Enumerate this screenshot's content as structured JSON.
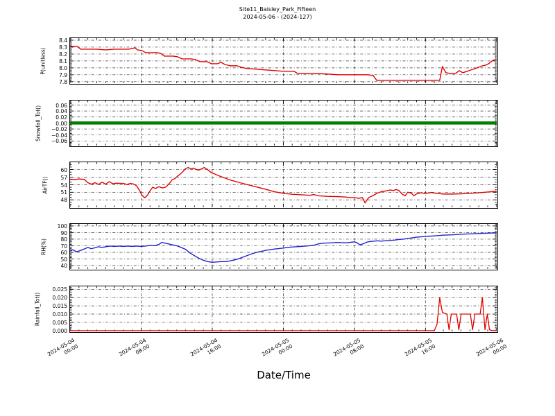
{
  "figure": {
    "title_line1": "Site11_Baisley_Park_Fifteen",
    "title_line2": "2024-05-06 - (2024-127)",
    "background": "#ffffff"
  },
  "xaxis": {
    "label": "Date/Time",
    "xlim_hours": [
      0,
      48
    ],
    "ticks": [
      {
        "h": 0,
        "label": "2024-05-04\n00:00"
      },
      {
        "h": 8,
        "label": "2024-05-04\n08:00"
      },
      {
        "h": 16,
        "label": "2024-05-04\n16:00"
      },
      {
        "h": 24,
        "label": "2024-05-05\n00:00"
      },
      {
        "h": 32,
        "label": "2024-05-05\n08:00"
      },
      {
        "h": 40,
        "label": "2024-05-05\n16:00"
      },
      {
        "h": 48,
        "label": "2024-05-06\n00:00"
      }
    ]
  },
  "chart_data": [
    {
      "id": "p-unitless",
      "type": "line",
      "ylabel": "P(unitless)",
      "color": "#e00000",
      "line_width": 1.4,
      "ylim": [
        7.78,
        8.43
      ],
      "ytick_values": [
        8.4,
        8.3,
        8.2,
        8.1,
        8.0,
        7.9,
        7.8
      ],
      "ytick_labels": [
        "8.4",
        "8.3",
        "8.2",
        "8.1",
        "8.0",
        "7.9",
        "7.8"
      ],
      "points": [
        [
          0,
          8.31
        ],
        [
          0.8,
          8.31
        ],
        [
          1.2,
          8.27
        ],
        [
          3,
          8.27
        ],
        [
          4,
          8.26
        ],
        [
          5,
          8.27
        ],
        [
          6.6,
          8.27
        ],
        [
          7,
          8.28
        ],
        [
          7.3,
          8.29
        ],
        [
          7.6,
          8.26
        ],
        [
          8.1,
          8.25
        ],
        [
          8.5,
          8.22
        ],
        [
          9.8,
          8.22
        ],
        [
          10.2,
          8.21
        ],
        [
          10.6,
          8.17
        ],
        [
          11.6,
          8.17
        ],
        [
          12.1,
          8.16
        ],
        [
          12.6,
          8.13
        ],
        [
          13.6,
          8.13
        ],
        [
          14.1,
          8.12
        ],
        [
          14.6,
          8.09
        ],
        [
          15.4,
          8.09
        ],
        [
          15.9,
          8.06
        ],
        [
          16.6,
          8.06
        ],
        [
          17,
          8.08
        ],
        [
          17.4,
          8.05
        ],
        [
          18,
          8.03
        ],
        [
          18.8,
          8.03
        ],
        [
          19.2,
          8.01
        ],
        [
          19.9,
          7.99
        ],
        [
          21,
          7.98
        ],
        [
          22,
          7.97
        ],
        [
          23,
          7.96
        ],
        [
          24,
          7.95
        ],
        [
          25.2,
          7.95
        ],
        [
          25.6,
          7.92
        ],
        [
          27.5,
          7.92
        ],
        [
          29,
          7.91
        ],
        [
          30.2,
          7.9
        ],
        [
          33.5,
          7.9
        ],
        [
          34.1,
          7.89
        ],
        [
          34.5,
          7.82
        ],
        [
          41.6,
          7.82
        ],
        [
          41.9,
          8.02
        ],
        [
          42.3,
          7.93
        ],
        [
          42.7,
          7.92
        ],
        [
          43.4,
          7.92
        ],
        [
          43.8,
          7.96
        ],
        [
          44.2,
          7.93
        ],
        [
          44.7,
          7.95
        ],
        [
          45.1,
          7.97
        ],
        [
          45.6,
          7.99
        ],
        [
          46,
          8.01
        ],
        [
          46.4,
          8.03
        ],
        [
          46.8,
          8.04
        ],
        [
          47.1,
          8.06
        ],
        [
          47.4,
          8.09
        ],
        [
          47.6,
          8.11
        ],
        [
          47.9,
          8.12
        ],
        [
          48,
          8.12
        ]
      ]
    },
    {
      "id": "snowfall-tot",
      "type": "line",
      "ylabel": "Snowfall_Tot()",
      "color": "#007f00",
      "line_width": 4.5,
      "ylim": [
        -0.075,
        0.075
      ],
      "ytick_values": [
        0.06,
        0.04,
        0.02,
        0.0,
        -0.02,
        -0.04,
        -0.06
      ],
      "ytick_labels": [
        "0.06",
        "0.04",
        "0.02",
        "0.00",
        "−0.02",
        "−0.04",
        "−0.06"
      ],
      "points": [
        [
          0,
          0
        ],
        [
          48,
          0
        ]
      ]
    },
    {
      "id": "airtf",
      "type": "line",
      "ylabel": "AirTF()",
      "color": "#e00000",
      "line_width": 1.4,
      "ylim": [
        45.1,
        62.9
      ],
      "ytick_values": [
        60,
        57,
        54,
        51,
        48
      ],
      "ytick_labels": [
        "60",
        "57",
        "54",
        "51",
        "48"
      ],
      "points": [
        [
          0,
          56.2
        ],
        [
          0.5,
          56
        ],
        [
          1,
          56.3
        ],
        [
          1.6,
          56.1
        ],
        [
          2,
          54.8
        ],
        [
          2.4,
          54.2
        ],
        [
          2.8,
          54.8
        ],
        [
          3.2,
          54.1
        ],
        [
          3.6,
          55
        ],
        [
          4,
          54.2
        ],
        [
          4.4,
          55.2
        ],
        [
          4.8,
          54.4
        ],
        [
          5.2,
          54.6
        ],
        [
          6,
          54.5
        ],
        [
          6.4,
          54.1
        ],
        [
          6.8,
          54.5
        ],
        [
          7.2,
          54.2
        ],
        [
          7.5,
          53.5
        ],
        [
          7.8,
          51.8
        ],
        [
          8.1,
          49.8
        ],
        [
          8.4,
          48.8
        ],
        [
          8.7,
          49.8
        ],
        [
          9,
          51.6
        ],
        [
          9.3,
          53
        ],
        [
          9.6,
          52.5
        ],
        [
          10,
          53.2
        ],
        [
          10.4,
          52.7
        ],
        [
          10.8,
          53.1
        ],
        [
          11.2,
          54.6
        ],
        [
          11.5,
          56
        ],
        [
          11.8,
          56.4
        ],
        [
          12.1,
          57.4
        ],
        [
          12.4,
          58.2
        ],
        [
          12.7,
          59.2
        ],
        [
          13,
          60.4
        ],
        [
          13.3,
          60.8
        ],
        [
          13.6,
          60.2
        ],
        [
          13.9,
          60.6
        ],
        [
          14.2,
          60
        ],
        [
          14.5,
          59.8
        ],
        [
          14.8,
          60.3
        ],
        [
          15.1,
          60.8
        ],
        [
          15.4,
          60.2
        ],
        [
          15.8,
          59
        ],
        [
          16.3,
          58.2
        ],
        [
          17,
          57.2
        ],
        [
          18,
          55.9
        ],
        [
          19,
          54.9
        ],
        [
          20,
          54
        ],
        [
          21,
          53.1
        ],
        [
          22,
          52.2
        ],
        [
          23,
          51.2
        ],
        [
          24,
          50.6
        ],
        [
          25,
          50.2
        ],
        [
          26,
          50
        ],
        [
          27,
          49.8
        ],
        [
          27.4,
          50.1
        ],
        [
          28,
          49.6
        ],
        [
          29,
          49.4
        ],
        [
          30,
          49.3
        ],
        [
          31,
          49.1
        ],
        [
          31.5,
          48.9
        ],
        [
          32,
          48.9
        ],
        [
          32.5,
          48.6
        ],
        [
          32.9,
          48.9
        ],
        [
          33.2,
          46.8
        ],
        [
          33.6,
          48.9
        ],
        [
          34,
          49.5
        ],
        [
          34.5,
          50.5
        ],
        [
          35,
          51.2
        ],
        [
          35.5,
          51.5
        ],
        [
          36,
          51.9
        ],
        [
          36.4,
          51.7
        ],
        [
          36.7,
          52.1
        ],
        [
          37,
          51.7
        ],
        [
          37.4,
          50.2
        ],
        [
          37.7,
          49.6
        ],
        [
          38,
          51
        ],
        [
          38.4,
          50.7
        ],
        [
          38.7,
          49.6
        ],
        [
          39,
          50.4
        ],
        [
          39.5,
          50.8
        ],
        [
          40,
          50.5
        ],
        [
          40.6,
          50.9
        ],
        [
          41.2,
          50.6
        ],
        [
          42,
          50.3
        ],
        [
          43,
          50.3
        ],
        [
          44,
          50.4
        ],
        [
          45,
          50.6
        ],
        [
          46,
          50.8
        ],
        [
          47,
          51.1
        ],
        [
          48,
          51.4
        ]
      ]
    },
    {
      "id": "rh",
      "type": "line",
      "ylabel": "RH(%)",
      "color": "#2222cc",
      "line_width": 1.4,
      "ylim": [
        35,
        103
      ],
      "ytick_values": [
        100,
        90,
        80,
        70,
        60,
        50,
        40
      ],
      "ytick_labels": [
        "100",
        "90",
        "80",
        "70",
        "60",
        "50",
        "40"
      ],
      "points": [
        [
          0,
          62
        ],
        [
          0.3,
          64
        ],
        [
          0.7,
          61
        ],
        [
          1,
          62
        ],
        [
          1.5,
          64.5
        ],
        [
          2,
          67.5
        ],
        [
          2.4,
          65.5
        ],
        [
          2.8,
          67
        ],
        [
          3.2,
          68.5
        ],
        [
          3.6,
          67.5
        ],
        [
          4,
          68.5
        ],
        [
          4.5,
          69.5
        ],
        [
          5,
          69
        ],
        [
          5.5,
          69.5
        ],
        [
          6,
          69
        ],
        [
          6.5,
          69.5
        ],
        [
          7,
          69
        ],
        [
          7.5,
          69.5
        ],
        [
          8,
          69
        ],
        [
          8.5,
          69.5
        ],
        [
          9,
          70.5
        ],
        [
          9.5,
          70
        ],
        [
          10,
          72
        ],
        [
          10.3,
          75
        ],
        [
          10.7,
          74
        ],
        [
          11,
          73
        ],
        [
          11.5,
          71.5
        ],
        [
          12,
          70
        ],
        [
          12.5,
          67.5
        ],
        [
          13,
          64.5
        ],
        [
          13.5,
          59
        ],
        [
          14,
          55
        ],
        [
          14.5,
          51
        ],
        [
          15,
          48
        ],
        [
          15.5,
          46
        ],
        [
          16,
          45
        ],
        [
          16.5,
          45.5
        ],
        [
          17,
          46
        ],
        [
          17.5,
          46
        ],
        [
          18,
          47
        ],
        [
          18.5,
          48.5
        ],
        [
          19,
          50.5
        ],
        [
          19.5,
          53
        ],
        [
          20,
          55.5
        ],
        [
          20.5,
          58
        ],
        [
          21,
          60
        ],
        [
          21.5,
          61.5
        ],
        [
          22,
          63
        ],
        [
          23,
          65
        ],
        [
          24,
          66.5
        ],
        [
          24.5,
          67.5
        ],
        [
          25,
          68
        ],
        [
          26,
          69
        ],
        [
          26.5,
          69.5
        ],
        [
          27,
          70
        ],
        [
          27.5,
          71
        ],
        [
          28,
          73
        ],
        [
          28.5,
          74
        ],
        [
          29.5,
          74.5
        ],
        [
          30,
          75
        ],
        [
          31,
          74.5
        ],
        [
          31.5,
          75
        ],
        [
          32,
          76
        ],
        [
          32.3,
          74.5
        ],
        [
          32.6,
          71.5
        ],
        [
          33,
          73
        ],
        [
          33.4,
          75.5
        ],
        [
          33.8,
          76.5
        ],
        [
          34.2,
          77
        ],
        [
          34.6,
          77.5
        ],
        [
          35,
          77
        ],
        [
          35.4,
          77.5
        ],
        [
          36,
          78
        ],
        [
          36.5,
          78.5
        ],
        [
          37,
          79.5
        ],
        [
          37.5,
          80
        ],
        [
          38,
          81
        ],
        [
          38.5,
          82
        ],
        [
          39,
          83
        ],
        [
          39.5,
          83.5
        ],
        [
          40,
          84
        ],
        [
          40.5,
          84.5
        ],
        [
          41,
          85
        ],
        [
          42,
          86
        ],
        [
          43,
          86.5
        ],
        [
          44,
          87.5
        ],
        [
          45,
          88
        ],
        [
          46,
          88.5
        ],
        [
          47,
          89
        ],
        [
          48,
          89.5
        ]
      ]
    },
    {
      "id": "rainfall-tot",
      "type": "line",
      "ylabel": "Rainfall_Tot()",
      "color": "#e00000",
      "line_width": 1.3,
      "ylim": [
        -0.0004,
        0.0268
      ],
      "ytick_values": [
        0.025,
        0.02,
        0.015,
        0.01,
        0.005,
        0.0
      ],
      "ytick_labels": [
        "0.025",
        "0.020",
        "0.015",
        "0.010",
        "0.005",
        "0.000"
      ],
      "points": [
        [
          0,
          0
        ],
        [
          41,
          0
        ],
        [
          41.3,
          0.004
        ],
        [
          41.6,
          0.02
        ],
        [
          41.9,
          0.011
        ],
        [
          42.4,
          0.01
        ],
        [
          42.65,
          0.0005
        ],
        [
          42.9,
          0.01
        ],
        [
          43.5,
          0.01
        ],
        [
          43.75,
          0.0005
        ],
        [
          44,
          0.01
        ],
        [
          45.05,
          0.01
        ],
        [
          45.3,
          0.0005
        ],
        [
          45.55,
          0.01
        ],
        [
          46.15,
          0.01
        ],
        [
          46.4,
          0.02
        ],
        [
          46.7,
          0.0005
        ],
        [
          46.95,
          0.01
        ],
        [
          47.2,
          0.0005
        ],
        [
          47.5,
          0
        ],
        [
          48,
          0
        ]
      ]
    }
  ]
}
